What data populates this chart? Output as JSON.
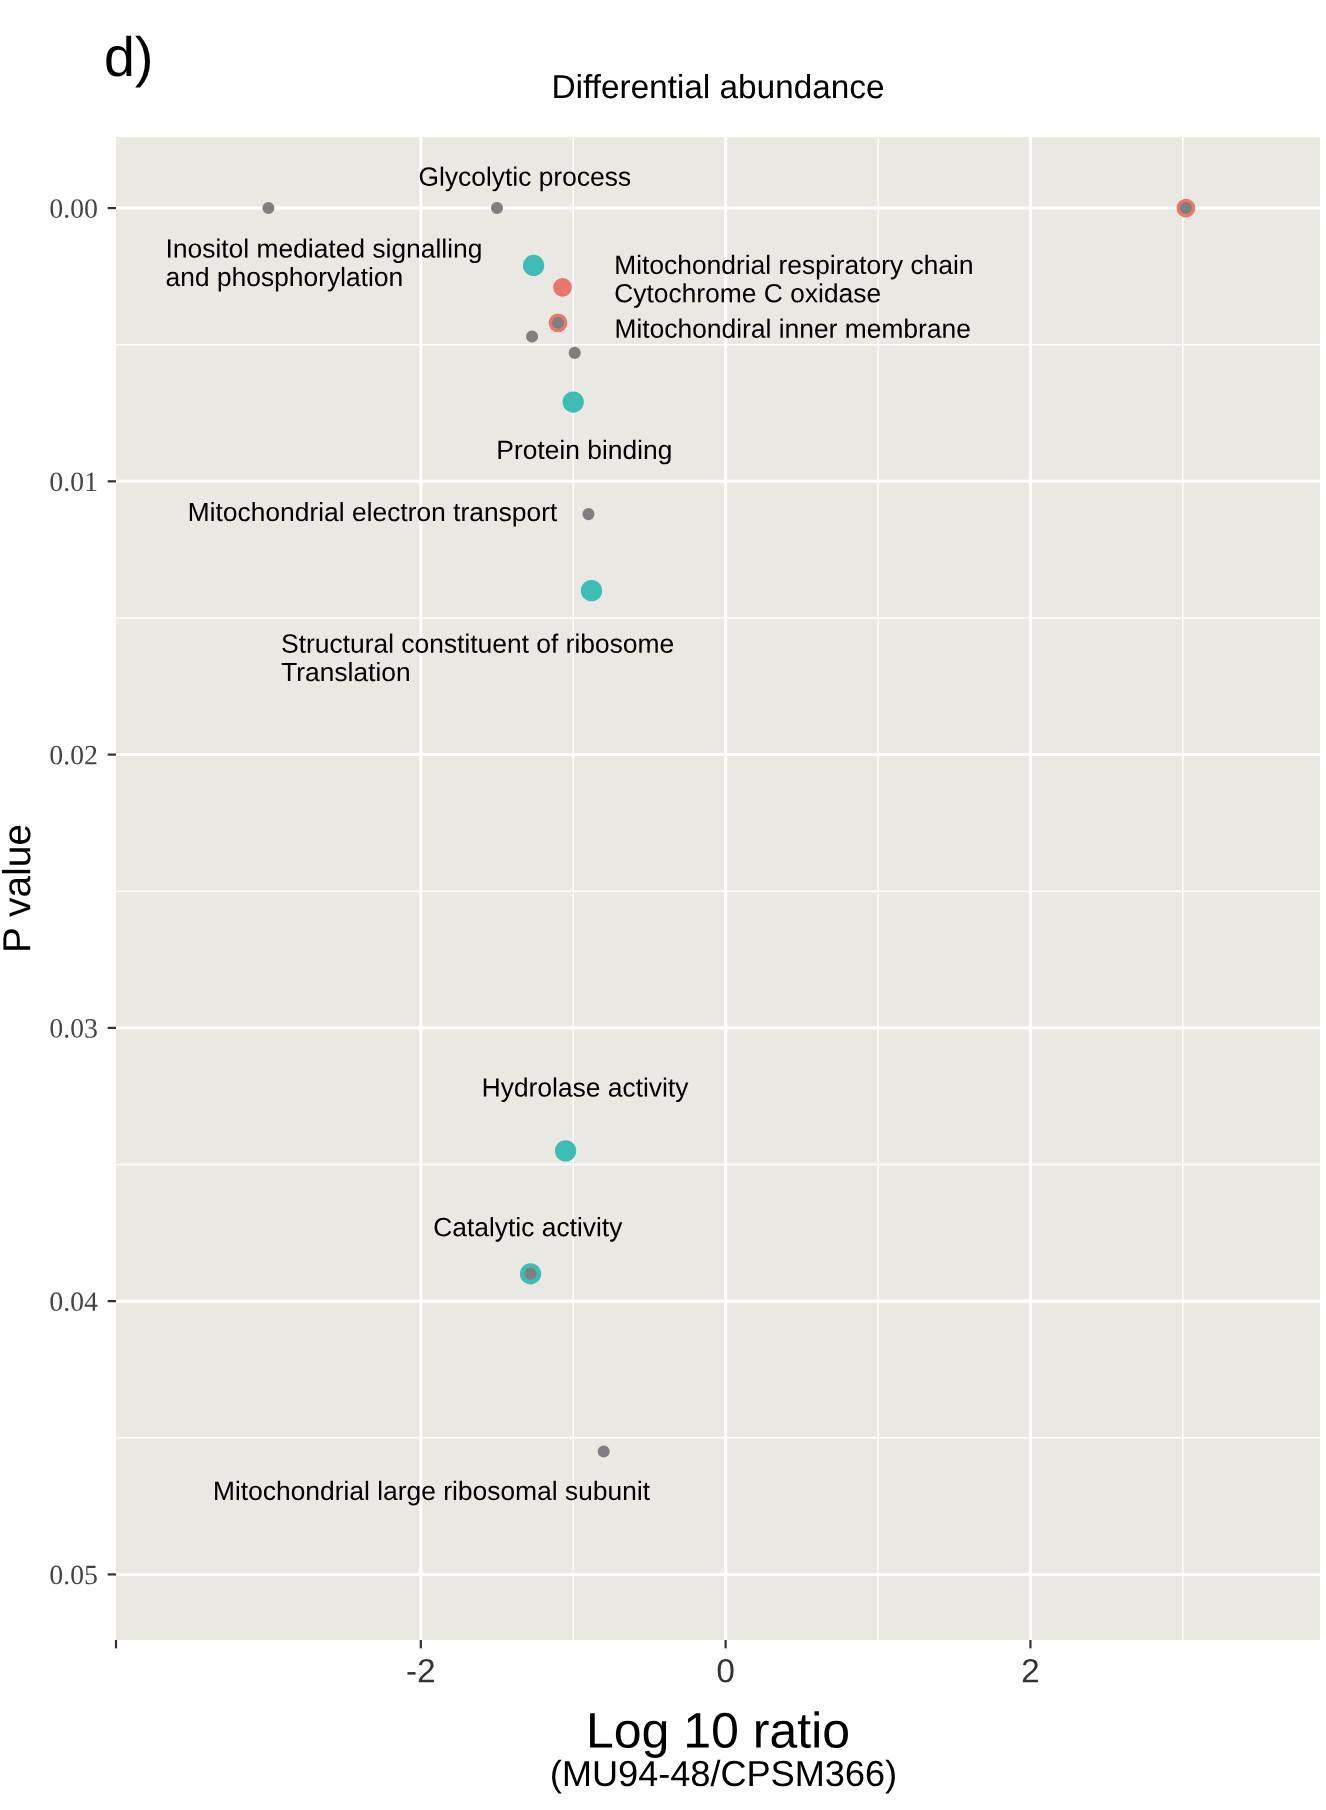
{
  "chart_data": {
    "type": "scatter",
    "title": "Differential abundance",
    "xlabel": "Log 10 ratio",
    "ylabel": "P value",
    "series": [
      {
        "color": "#e8776c",
        "x": [
          3.02,
          -1.07,
          -1.1
        ],
        "values": [
          0.0,
          0.0029,
          0.0042
        ]
      },
      {
        "color": "#3dbdb5",
        "x": [
          -1.26,
          -1.0,
          -0.88,
          -1.05,
          -1.28
        ],
        "values": [
          0.0021,
          0.0071,
          0.014,
          0.0345,
          0.039
        ]
      },
      {
        "color": "#7f7f7f",
        "x": [
          -3.0,
          -1.5,
          3.02,
          -1.1,
          -1.27,
          -0.99,
          -0.9,
          -1.28,
          -0.8
        ],
        "values": [
          0.0,
          0.0,
          0.0,
          0.0042,
          0.0047,
          0.0053,
          0.0112,
          0.039,
          0.0455
        ]
      }
    ],
    "xlim": [
      -4,
      3.9
    ],
    "xticks": [
      {
        "value": -4,
        "label": null
      },
      -2,
      0,
      2
    ],
    "ylim": [
      0.0524,
      -0.0026
    ],
    "yticks": [
      {
        "value": 0,
        "label": "0.00"
      },
      0.01,
      0.02,
      0.03,
      0.04,
      0.05
    ],
    "grid": true,
    "legend": false,
    "marker": "circle",
    "annotations": [
      "d)",
      "(MU94-48/CPSM366)",
      {
        "text": "Glycolytic process",
        "x": -1.5,
        "y": 0.0
      },
      {
        "text": "Inositol mediated signalling\nand phosphorylation",
        "x": -3.0,
        "y": 0.0
      },
      "Mitochondrial respiratory chain\nCytochrome C oxidase",
      "Mitochondiral inner membrane",
      "Mitochondrial electron transport",
      {
        "text": "Protein binding",
        "x": -1.0,
        "y": 0.0071
      },
      {
        "text": "Structural constituent of ribosome\nTranslation",
        "x": -0.88,
        "y": 0.014
      },
      {
        "text": "Hydrolase activity",
        "x": -1.05,
        "y": 0.0345
      },
      {
        "text": "Catalytic activity",
        "x": -1.28,
        "y": 0.039
      },
      {
        "text": "Mitochondrial large ribosomal subunit",
        "x": -0.8,
        "y": 0.0455
      }
    ]
  }
}
